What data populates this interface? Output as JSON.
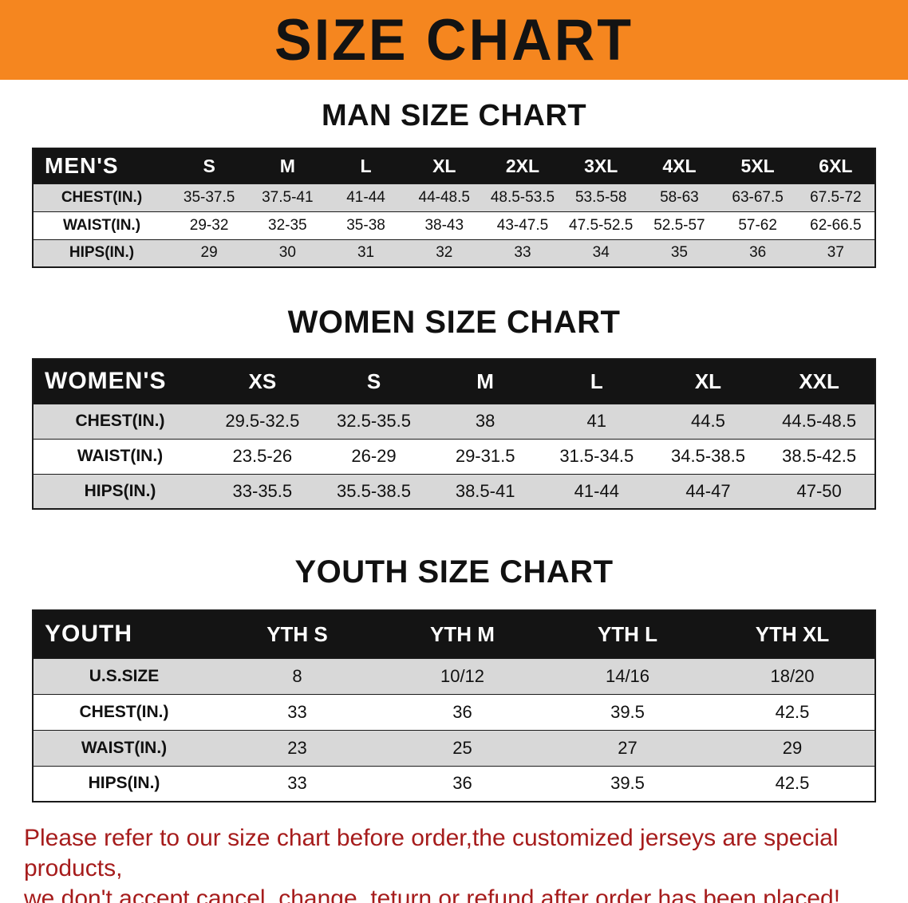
{
  "banner": {
    "title": "SIZE CHART",
    "bg_color": "#F5861F"
  },
  "sections": [
    {
      "heading": "MAN SIZE CHART",
      "table": {
        "corner_label": "MEN'S",
        "columns": [
          "S",
          "M",
          "L",
          "XL",
          "2XL",
          "3XL",
          "4XL",
          "5XL",
          "6XL"
        ],
        "rows": [
          {
            "label": "CHEST(IN.)",
            "values": [
              "35-37.5",
              "37.5-41",
              "41-44",
              "44-48.5",
              "48.5-53.5",
              "53.5-58",
              "58-63",
              "63-67.5",
              "67.5-72"
            ]
          },
          {
            "label": "WAIST(IN.)",
            "values": [
              "29-32",
              "32-35",
              "35-38",
              "38-43",
              "43-47.5",
              "47.5-52.5",
              "52.5-57",
              "57-62",
              "62-66.5"
            ]
          },
          {
            "label": "HIPS(IN.)",
            "values": [
              "29",
              "30",
              "31",
              "32",
              "33",
              "34",
              "35",
              "36",
              "37"
            ]
          }
        ]
      }
    },
    {
      "heading": "WOMEN SIZE CHART",
      "table": {
        "corner_label": "WOMEN'S",
        "columns": [
          "XS",
          "S",
          "M",
          "L",
          "XL",
          "XXL"
        ],
        "rows": [
          {
            "label": "CHEST(IN.)",
            "values": [
              "29.5-32.5",
              "32.5-35.5",
              "38",
              "41",
              "44.5",
              "44.5-48.5"
            ]
          },
          {
            "label": "WAIST(IN.)",
            "values": [
              "23.5-26",
              "26-29",
              "29-31.5",
              "31.5-34.5",
              "34.5-38.5",
              "38.5-42.5"
            ]
          },
          {
            "label": "HIPS(IN.)",
            "values": [
              "33-35.5",
              "35.5-38.5",
              "38.5-41",
              "41-44",
              "44-47",
              "47-50"
            ]
          }
        ]
      }
    },
    {
      "heading": "YOUTH SIZE CHART",
      "table": {
        "corner_label": "YOUTH",
        "columns": [
          "YTH S",
          "YTH M",
          "YTH L",
          "YTH XL"
        ],
        "rows": [
          {
            "label": "U.S.SIZE",
            "values": [
              "8",
              "10/12",
              "14/16",
              "18/20"
            ]
          },
          {
            "label": "CHEST(IN.)",
            "values": [
              "33",
              "36",
              "39.5",
              "42.5"
            ]
          },
          {
            "label": "WAIST(IN.)",
            "values": [
              "23",
              "25",
              "27",
              "29"
            ]
          },
          {
            "label": "HIPS(IN.)",
            "values": [
              "33",
              "36",
              "39.5",
              "42.5"
            ]
          }
        ]
      }
    }
  ],
  "disclaimer": {
    "lines": [
      "Please refer to our size chart before order,the customized jerseys are special products,",
      "we don't accept cancel, change, teturn or refund after order has been placed!"
    ],
    "color": "#A61C1C"
  }
}
